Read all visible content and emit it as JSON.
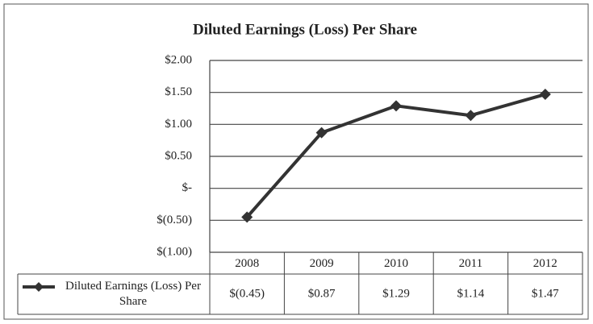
{
  "chart_data": {
    "type": "line",
    "title": "Diluted Earnings (Loss) Per Share",
    "categories": [
      "2008",
      "2009",
      "2010",
      "2011",
      "2012"
    ],
    "series": [
      {
        "name": "Diluted Earnings (Loss) Per Share",
        "color": "#333333",
        "values": [
          -0.45,
          0.87,
          1.29,
          1.14,
          1.47
        ],
        "value_labels": [
          "$(0.45)",
          "$0.87",
          "$1.29",
          "$1.14",
          "$1.47"
        ]
      }
    ],
    "ylim": [
      -1,
      2
    ],
    "yticks": [
      {
        "value": -1,
        "label": "$(1.00)"
      },
      {
        "value": -0.5,
        "label": "$(0.50)"
      },
      {
        "value": 0,
        "label": "$-"
      },
      {
        "value": 0.5,
        "label": "$0.50"
      },
      {
        "value": 1,
        "label": "$1.00"
      },
      {
        "value": 1.5,
        "label": "$1.50"
      },
      {
        "value": 2,
        "label": "$2.00"
      }
    ],
    "grid": true
  }
}
